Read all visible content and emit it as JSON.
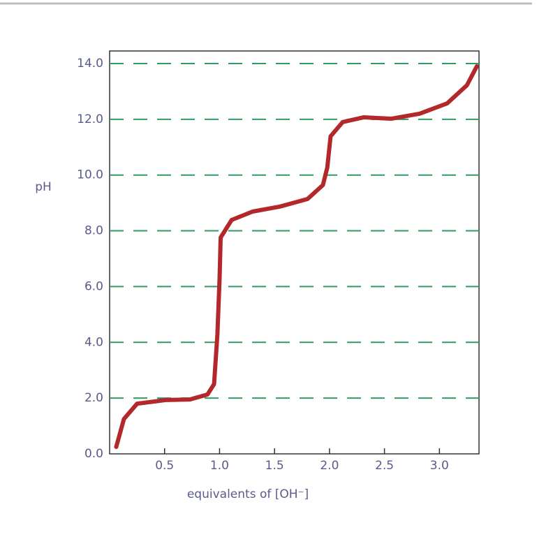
{
  "chart_data": {
    "type": "line",
    "y_label": "pH",
    "x_label": "equivalents of [OH⁻]",
    "x": [
      0.06,
      0.13,
      0.25,
      0.51,
      0.73,
      0.89,
      0.95,
      0.98,
      1.0,
      1.01,
      1.11,
      1.3,
      1.55,
      1.8,
      1.94,
      1.98,
      2.01,
      2.12,
      2.31,
      2.56,
      2.82,
      3.07,
      3.25,
      3.34
    ],
    "values": [
      0.25,
      1.25,
      1.8,
      1.93,
      1.95,
      2.13,
      2.5,
      4.26,
      6.26,
      7.76,
      8.39,
      8.69,
      8.87,
      9.14,
      9.64,
      10.27,
      11.39,
      11.9,
      12.07,
      12.02,
      12.2,
      12.57,
      13.22,
      13.9
    ],
    "color": "#b3282a",
    "xlim": [
      0,
      3.36
    ],
    "ylim": [
      0,
      14.45
    ],
    "xticks": [
      0.5,
      {
        "value": 1,
        "label": "1.0"
      },
      1.5,
      {
        "value": 2,
        "label": "2.0"
      },
      2.5,
      {
        "value": 3,
        "label": "3.0"
      }
    ],
    "yticks": [
      {
        "value": 0,
        "label": "0.0"
      },
      {
        "value": 2,
        "label": "2.0"
      },
      {
        "value": 4,
        "label": "4.0"
      },
      {
        "value": 6,
        "label": "6.0"
      },
      {
        "value": 8,
        "label": "8.0"
      },
      {
        "value": 10,
        "label": "10.0"
      },
      {
        "value": 12,
        "label": "12.0"
      },
      {
        "value": 14,
        "label": "14.0"
      }
    ],
    "grid": true,
    "grid_color": "#2e9e5e"
  }
}
